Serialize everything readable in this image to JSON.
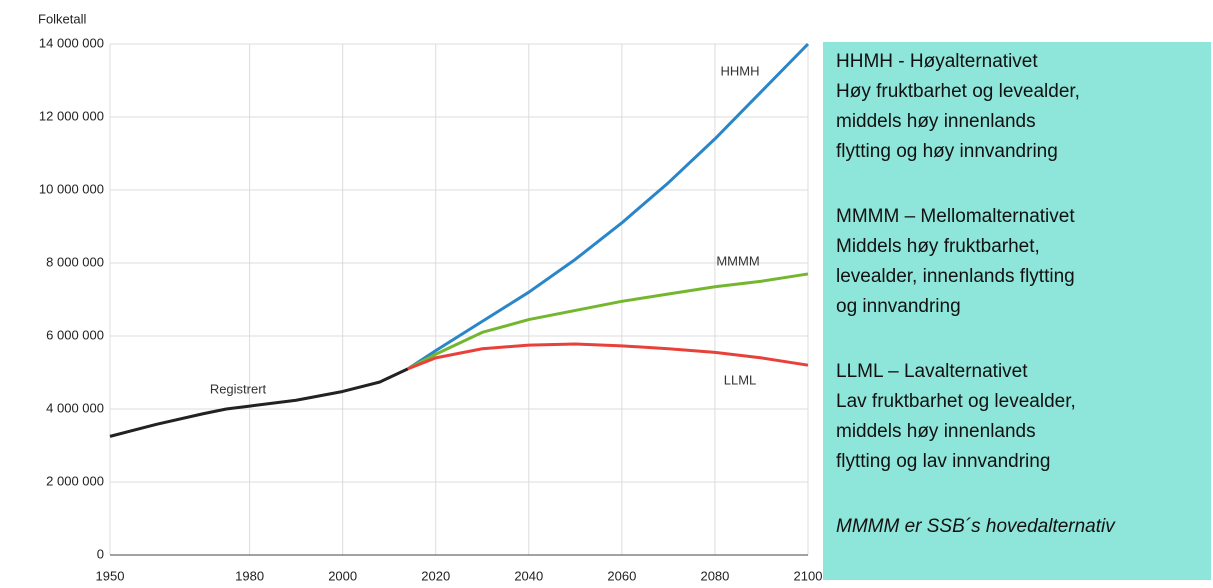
{
  "chart_data": {
    "type": "line",
    "y_axis_title": "Folketall",
    "xlim": [
      1950,
      2100
    ],
    "xticks": [
      1950,
      1980,
      2000,
      2020,
      2040,
      2060,
      2080,
      2100
    ],
    "ylim": [
      0,
      14000000
    ],
    "yticks": [
      0,
      {
        "value": 2000000,
        "label": "2 000 000"
      },
      {
        "value": 4000000,
        "label": "4 000 000"
      },
      {
        "value": 6000000,
        "label": "6 000 000"
      },
      {
        "value": 8000000,
        "label": "8 000 000"
      },
      {
        "value": 10000000,
        "label": "10 000 000"
      },
      {
        "value": 12000000,
        "label": "12 000 000"
      },
      {
        "value": 14000000,
        "label": "14 000 000"
      }
    ],
    "grid": true,
    "series": [
      {
        "name": "Registrert",
        "color": "#222222",
        "x": [
          1950,
          1960,
          1970,
          1975,
          1980,
          1990,
          2000,
          2008,
          2014
        ],
        "values": [
          3250000,
          3580000,
          3870000,
          4000000,
          4080000,
          4240000,
          4480000,
          4740000,
          5100000
        ]
      },
      {
        "name": "HHMH",
        "color": "#2a86c8",
        "x": [
          2014,
          2020,
          2030,
          2040,
          2050,
          2060,
          2070,
          2080,
          2090,
          2100
        ],
        "values": [
          5100000,
          5600000,
          6400000,
          7200000,
          8100000,
          9100000,
          10200000,
          11400000,
          12700000,
          14000000
        ]
      },
      {
        "name": "MMMM",
        "color": "#74b72e",
        "x": [
          2014,
          2020,
          2030,
          2040,
          2050,
          2060,
          2070,
          2080,
          2090,
          2100
        ],
        "values": [
          5100000,
          5500000,
          6100000,
          6450000,
          6700000,
          6950000,
          7150000,
          7350000,
          7500000,
          7700000
        ]
      },
      {
        "name": "LLML",
        "color": "#e8413a",
        "x": [
          2014,
          2020,
          2030,
          2040,
          2050,
          2060,
          2070,
          2080,
          2090,
          2100
        ],
        "values": [
          5100000,
          5400000,
          5650000,
          5750000,
          5780000,
          5730000,
          5650000,
          5550000,
          5400000,
          5200000
        ]
      }
    ]
  },
  "info_box": {
    "paragraphs": [
      {
        "title": "HHMH - Høyalternativet",
        "lines": [
          "Høy fruktbarhet og levealder,",
          "middels høy innenlands",
          "flytting og høy innvandring"
        ]
      },
      {
        "title": "MMMM – Mellomalternativet",
        "lines": [
          "Middels høy fruktbarhet,",
          "levealder, innenlands flytting",
          "og innvandring"
        ]
      },
      {
        "title": "LLML – Lavalternativet",
        "lines": [
          "Lav fruktbarhet og levealder,",
          "middels høy innenlands",
          "flytting og lav innvandring"
        ]
      }
    ],
    "note": "MMMM er SSB´s hovedalternativ"
  }
}
